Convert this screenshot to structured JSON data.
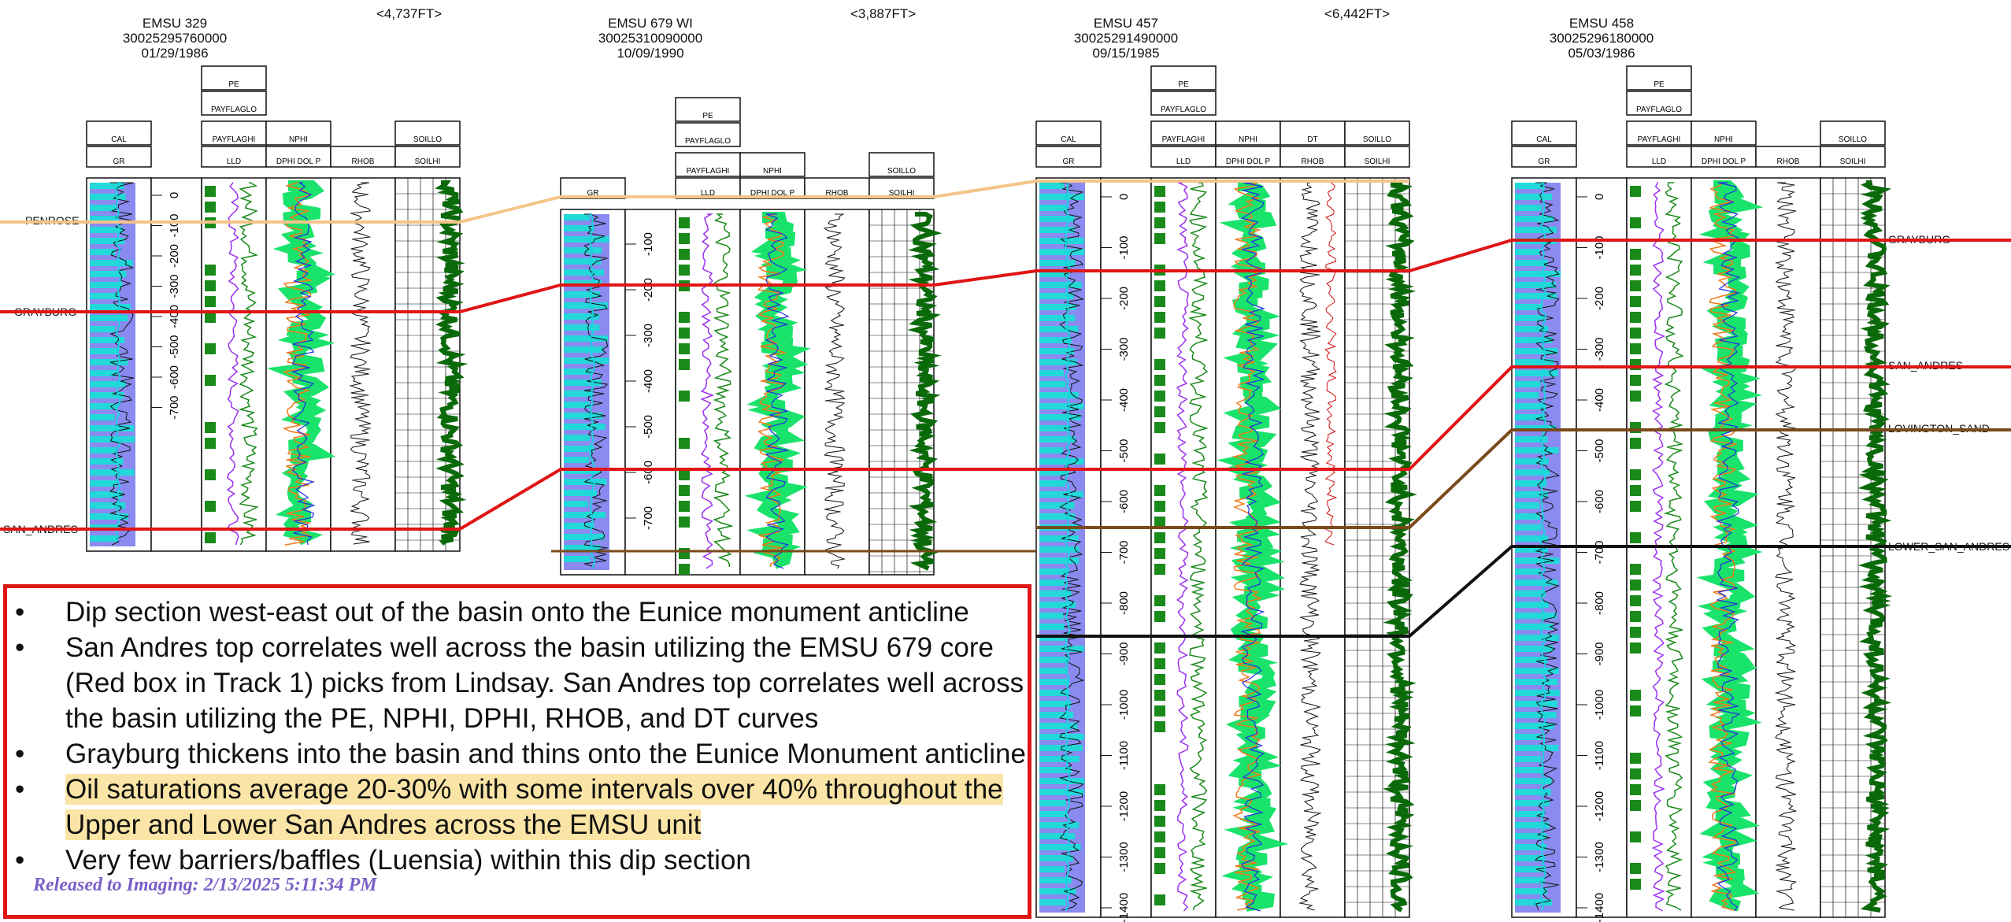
{
  "wells": [
    {
      "name": "EMSU 329",
      "api": "30025295760000",
      "date": "01/29/1986",
      "distance": "<4,737FT>"
    },
    {
      "name": "EMSU 679 WI",
      "api": "30025310090000",
      "date": "10/09/1990",
      "distance": "<3,887FT>"
    },
    {
      "name": "EMSU 457",
      "api": "30025291490000",
      "date": "09/15/1985",
      "distance": "<6,442FT>"
    },
    {
      "name": "EMSU 458",
      "api": "30025296180000",
      "date": "05/03/1986",
      "distance": ""
    }
  ],
  "left_markers": [
    "PENROSE",
    "GRAYBURG",
    "SAN_ANDRES"
  ],
  "right_markers": [
    "GRAYBURG",
    "SAN_ANDRES",
    "LOVINGTON_SAND",
    "LOWER_SAN_ANDRES"
  ],
  "track_labels": {
    "cal": "CAL",
    "gr": "GR",
    "pe": "PE",
    "payflaglo": "PAYFLAGLO",
    "payflaghi": "PAYFLAGHI",
    "lld": "LLD",
    "nphi": "NPHI",
    "dphi": "DPHI  DOL  P",
    "rhob": "RHOB",
    "dt": "DT",
    "soillo": "SOILLO",
    "soilhi": "SOILHI"
  },
  "depths_a": [
    "0",
    "-100",
    "-200",
    "-300",
    "-400",
    "-500",
    "-600",
    "-700"
  ],
  "depths_b": [
    "-100",
    "-200",
    "-300",
    "-400",
    "-500",
    "-600",
    "-700"
  ],
  "depths_c": [
    "0",
    "-100",
    "-200",
    "-300",
    "-400",
    "-500",
    "-600",
    "-700",
    "-800",
    "-900",
    "-1000",
    "-1100",
    "-1200",
    "-1300",
    "-1400"
  ],
  "bullets": [
    "Dip section west-east out of the basin onto the Eunice monument anticline",
    "San Andres top correlates well across the basin utilizing the EMSU 679 core (Red box in Track 1) picks from Lindsay.  San Andres top correlates well across the basin utilizing the PE, NPHI, DPHI, RHOB, and DT curves",
    "Grayburg thickens into the basin and thins onto the Eunice Monument anticline",
    "Oil saturations average 20-30% with some intervals over 40% throughout the Upper and Lower San Andres across the EMSU unit",
    "Very few barriers/baffles (Luensia) within this dip section"
  ],
  "bullet_char": "•",
  "stamp": "Released to Imaging: 2/13/2025 5:11:34 PM",
  "colors": {
    "gr_fill": "#8a8af0",
    "gr_fill2": "#22d8d8",
    "pe": "#9b30f0",
    "lld": "#1a8a1a",
    "nphi_fill": "#19e36b",
    "dphi": "#f07a1a",
    "soil": "#0a6a0a",
    "grayburg": "#e01515",
    "penrose": "#f4c48a",
    "lovington": "#7a4a1a",
    "lower_sa": "#111111"
  }
}
